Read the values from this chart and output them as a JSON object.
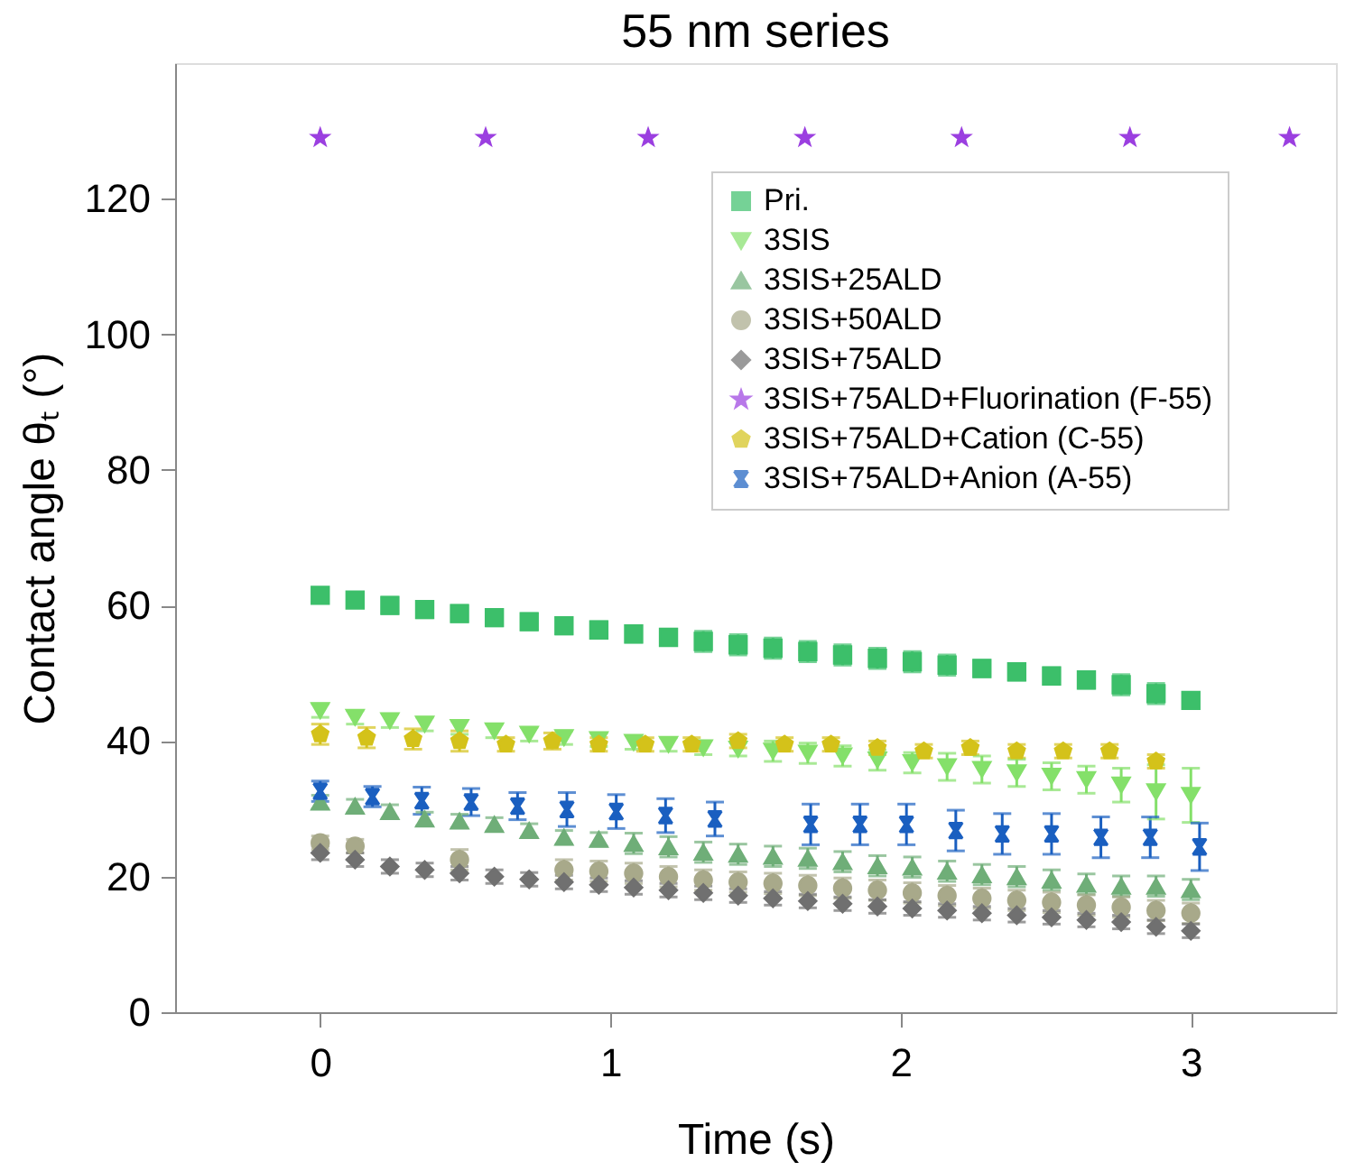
{
  "chart_data": {
    "type": "scatter",
    "title": "55 nm series",
    "xlabel": "Time (s)",
    "ylabel": "Contact angle θₜ (°)",
    "xlim": [
      -0.5,
      3.5
    ],
    "xticks": [
      0,
      1,
      2,
      3
    ],
    "ylim": [
      0,
      140
    ],
    "yticks": [
      0,
      20,
      40,
      60,
      80,
      100,
      120
    ],
    "grid": false,
    "legend": "top right",
    "x": [
      0,
      0.12,
      0.24,
      0.36,
      0.48,
      0.6,
      0.72,
      0.84,
      0.96,
      1.08,
      1.2,
      1.32,
      1.44,
      1.56,
      1.68,
      1.8,
      1.92,
      2.04,
      2.16,
      2.28,
      2.4,
      2.52,
      2.64,
      2.76,
      2.88,
      3.0
    ],
    "series": [
      {
        "name": "Pri.",
        "color": "#3cbf6a",
        "marker": "square",
        "values": [
          61.5,
          60.8,
          60,
          59.4,
          58.8,
          58.2,
          57.6,
          57,
          56.4,
          55.8,
          55.3,
          54.7,
          54.2,
          53.7,
          53.2,
          52.7,
          52.2,
          51.7,
          51.2,
          50.7,
          50.2,
          49.6,
          49,
          48.3,
          47,
          46
        ],
        "errors": [
          1,
          1,
          1.2,
          1.2,
          1.2,
          1.2,
          1.2,
          1.2,
          1.2,
          1.2,
          1.2,
          1.5,
          1.5,
          1.5,
          1.5,
          1.5,
          1.5,
          1.5,
          1.5,
          1.2,
          1.2,
          1.2,
          1.2,
          1.5,
          1.5,
          1
        ]
      },
      {
        "name": "3SIS",
        "color": "#84e06a",
        "marker": "triangle_down",
        "values": [
          44.5,
          43.5,
          43,
          42.5,
          42,
          41.5,
          41,
          40.5,
          40.2,
          39.8,
          39.5,
          39,
          38.8,
          38.5,
          38.2,
          37.8,
          37.2,
          36.8,
          36.2,
          35.8,
          35.3,
          34.8,
          34.3,
          33.5,
          32.5,
          32
        ],
        "errors": [
          1,
          1,
          1,
          1,
          1,
          1,
          1,
          1,
          1,
          1,
          1,
          1,
          1,
          1.5,
          1.5,
          1.5,
          1.5,
          1.5,
          2,
          2,
          2,
          2,
          2,
          2.5,
          4,
          4
        ]
      },
      {
        "name": "3SIS+25ALD",
        "color": "#6fae78",
        "marker": "triangle",
        "values": [
          31,
          30.4,
          29.6,
          28.5,
          28.2,
          27.7,
          26.8,
          25.8,
          25.5,
          24.9,
          24.4,
          23.6,
          23.3,
          23,
          22.7,
          22.2,
          21.6,
          21.4,
          20.8,
          20.3,
          20,
          19.5,
          18.9,
          18.6,
          18.6,
          18.1
        ],
        "errors": [
          1,
          1,
          1,
          1,
          1,
          1,
          1,
          1,
          1,
          1.5,
          1.5,
          1.5,
          1.5,
          1.5,
          1.5,
          1.5,
          1.5,
          1.5,
          1.5,
          1.5,
          1.5,
          1.5,
          1.5,
          1.5,
          1.5,
          1.5
        ]
      },
      {
        "name": "3SIS+50ALD",
        "color": "#a8a98a",
        "marker": "circle",
        "values": [
          25,
          24.5,
          null,
          null,
          22.5,
          null,
          null,
          21,
          20.8,
          20.5,
          20,
          19.5,
          19.2,
          19,
          18.7,
          18.3,
          18,
          17.6,
          17.2,
          16.8,
          16.5,
          16.2,
          15.8,
          15.5,
          15,
          14.6
        ],
        "errors": [
          1,
          1,
          null,
          null,
          1.5,
          null,
          null,
          1.5,
          1.5,
          1.5,
          1.5,
          1.5,
          1.5,
          1.5,
          1.5,
          1.5,
          1.5,
          1.5,
          1.5,
          1.5,
          1.5,
          1.5,
          1.5,
          1.5,
          1.5,
          1.5
        ]
      },
      {
        "name": "3SIS+75ALD",
        "color": "#707070",
        "marker": "diamond",
        "values": [
          23.5,
          22.5,
          21.5,
          21,
          20.5,
          20,
          19.6,
          19.2,
          18.8,
          18.4,
          18,
          17.6,
          17.2,
          16.8,
          16.4,
          16,
          15.6,
          15.3,
          15,
          14.6,
          14.3,
          14,
          13.6,
          13.3,
          12.6,
          12
        ],
        "errors": [
          1,
          1,
          1,
          1,
          1,
          1,
          1,
          1,
          1,
          1,
          1,
          1,
          1,
          1,
          1,
          1,
          1,
          1,
          1,
          1,
          1,
          1,
          1,
          1,
          1,
          1
        ]
      },
      {
        "name": "3SIS+75ALD+Fluorination (F-55)",
        "color": "#9b3fe0",
        "marker": "star",
        "x": [
          0,
          0.57,
          1.13,
          1.67,
          2.21,
          2.79,
          3.34
        ],
        "values": [
          129,
          129,
          129,
          129,
          129,
          129,
          129
        ]
      },
      {
        "name": "3SIS+75ALD+Cation (C-55)",
        "color": "#d4c21a",
        "x": [
          0,
          0.16,
          0.32,
          0.48,
          0.64,
          0.8,
          0.96,
          1.12,
          1.28,
          1.44,
          1.6,
          1.76,
          1.92,
          2.08,
          2.24,
          2.4,
          2.56,
          2.72,
          2.88
        ],
        "values": [
          41,
          40.5,
          40.3,
          40,
          39.5,
          40,
          39.5,
          39.5,
          39.5,
          40,
          39.5,
          39.5,
          39,
          38.5,
          39,
          38.5,
          38.5,
          38.5,
          37
        ],
        "errors": [
          1.5,
          1.5,
          1.5,
          1.5,
          1,
          1.2,
          1,
          1,
          1,
          1,
          1,
          1,
          1,
          1,
          1,
          1,
          1,
          1,
          1
        ]
      },
      {
        "name": "3SIS+75ALD+Anion (A-55)",
        "color": "#1a5fc0",
        "marker": "cross",
        "x": [
          0,
          0.18,
          0.35,
          0.52,
          0.68,
          0.85,
          1.02,
          1.19,
          1.36,
          1.69,
          1.86,
          2.02,
          2.19,
          2.35,
          2.52,
          2.69,
          2.86,
          3.03
        ],
        "values": [
          32.6,
          31.8,
          31.2,
          31,
          30.4,
          29.9,
          29.6,
          29,
          28.5,
          27.7,
          27.7,
          27.7,
          26.8,
          26.3,
          26.3,
          25.8,
          25.8,
          24.4
        ],
        "errors": [
          1.5,
          1.5,
          2,
          2,
          2,
          2.5,
          2.5,
          2.5,
          2.5,
          3,
          3,
          3,
          3,
          3,
          3,
          3,
          3,
          3.5
        ]
      }
    ]
  }
}
